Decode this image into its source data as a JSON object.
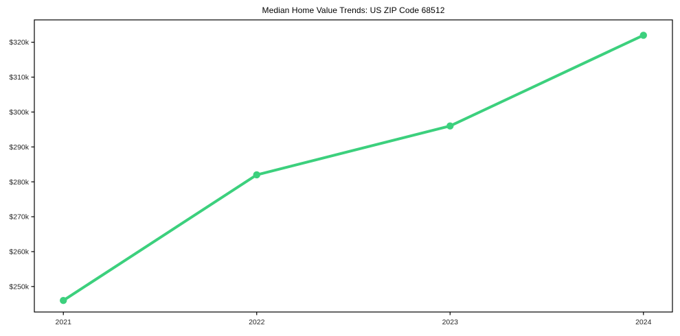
{
  "chart_data": {
    "type": "line",
    "title": "Median Home Value Trends: US ZIP Code 68512",
    "x": [
      2021,
      2022,
      2023,
      2024
    ],
    "x_tick_labels": [
      "2021",
      "2022",
      "2023",
      "2024"
    ],
    "values": [
      246000,
      282000,
      296000,
      322000
    ],
    "series_name": "Median Home Value",
    "y_ticks": [
      250000,
      260000,
      270000,
      280000,
      290000,
      300000,
      310000,
      320000
    ],
    "y_tick_labels": [
      "$250k",
      "$260k",
      "$270k",
      "$280k",
      "$290k",
      "$300k",
      "$310k",
      "$320k"
    ],
    "xlim": [
      2020.85,
      2024.15
    ],
    "ylim": [
      242700,
      326400
    ],
    "xlabel": "",
    "ylabel": "",
    "grid": false,
    "legend": null,
    "line_color": "#3cd07d",
    "marker": "circle",
    "axis_color": "#000000",
    "tick_label_color": "#262626",
    "background_color": "#ffffff"
  }
}
